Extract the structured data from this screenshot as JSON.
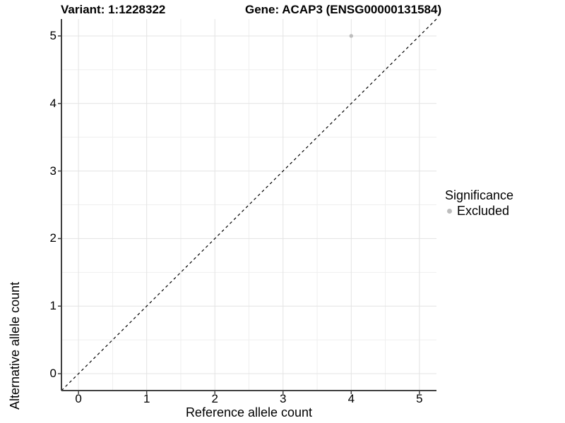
{
  "titles": {
    "left": "Variant: 1:1228322",
    "right": "Gene: ACAP3 (ENSG00000131584)"
  },
  "chart_data": {
    "type": "scatter",
    "title_left": "Variant: 1:1228322",
    "title_right": "Gene: ACAP3 (ENSG00000131584)",
    "xlabel": "Reference allele count",
    "ylabel": "Alternative allele count",
    "xlim": [
      -0.25,
      5.25
    ],
    "ylim": [
      -0.25,
      5.25
    ],
    "xticks": [
      "0",
      "1",
      "2",
      "3",
      "4",
      "5"
    ],
    "yticks": [
      "0",
      "1",
      "2",
      "3",
      "4",
      "5"
    ],
    "minor_tick_positions": [
      0.5,
      1.5,
      2.5,
      3.5,
      4.5
    ],
    "grid": "major+minor",
    "points": [
      {
        "x": 4,
        "y": 5,
        "series": "Excluded"
      }
    ],
    "reference_line": {
      "slope": 1,
      "intercept": 0,
      "style": "dashed",
      "color": "#000000"
    },
    "legend": {
      "title": "Significance",
      "position": "right",
      "items": [
        {
          "label": "Excluded",
          "color": "#bdbdbd"
        }
      ]
    },
    "colors": {
      "point": "#bdbdbd",
      "grid_major": "#e3e3e3",
      "grid_minor": "#efefef",
      "axis_line": "#404040",
      "background": "#ffffff"
    }
  }
}
